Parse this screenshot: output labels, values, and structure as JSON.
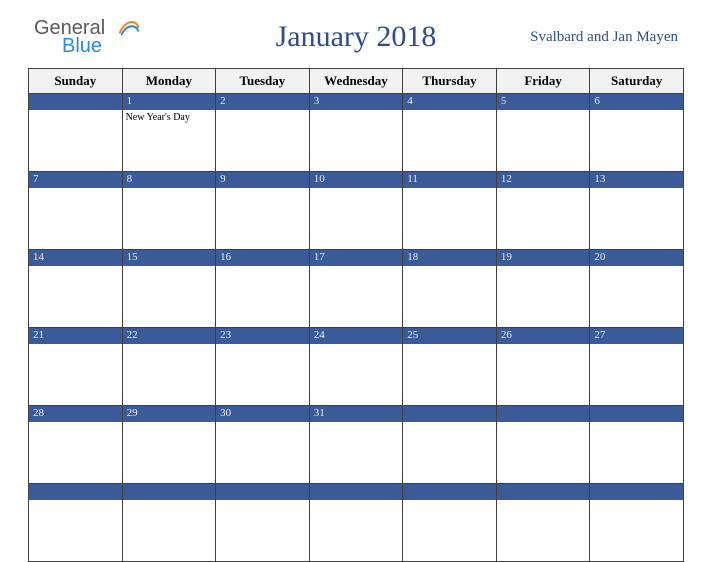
{
  "header": {
    "logo_part1": "General",
    "logo_part2": "Blue",
    "title": "January 2018",
    "region": "Svalbard and Jan Mayen"
  },
  "calendar": {
    "day_headers": [
      "Sunday",
      "Monday",
      "Tuesday",
      "Wednesday",
      "Thursday",
      "Friday",
      "Saturday"
    ],
    "colors": {
      "header_bg": "#f2f2f2",
      "border": "#404040",
      "daybar_bg": "#3a5a98",
      "daybar_text": "#e8ecf5",
      "title_color": "#2f4d8c"
    },
    "weeks": [
      [
        {
          "num": "",
          "event": ""
        },
        {
          "num": "1",
          "event": "New Year's Day"
        },
        {
          "num": "2",
          "event": ""
        },
        {
          "num": "3",
          "event": ""
        },
        {
          "num": "4",
          "event": ""
        },
        {
          "num": "5",
          "event": ""
        },
        {
          "num": "6",
          "event": ""
        }
      ],
      [
        {
          "num": "7",
          "event": ""
        },
        {
          "num": "8",
          "event": ""
        },
        {
          "num": "9",
          "event": ""
        },
        {
          "num": "10",
          "event": ""
        },
        {
          "num": "11",
          "event": ""
        },
        {
          "num": "12",
          "event": ""
        },
        {
          "num": "13",
          "event": ""
        }
      ],
      [
        {
          "num": "14",
          "event": ""
        },
        {
          "num": "15",
          "event": ""
        },
        {
          "num": "16",
          "event": ""
        },
        {
          "num": "17",
          "event": ""
        },
        {
          "num": "18",
          "event": ""
        },
        {
          "num": "19",
          "event": ""
        },
        {
          "num": "20",
          "event": ""
        }
      ],
      [
        {
          "num": "21",
          "event": ""
        },
        {
          "num": "22",
          "event": ""
        },
        {
          "num": "23",
          "event": ""
        },
        {
          "num": "24",
          "event": ""
        },
        {
          "num": "25",
          "event": ""
        },
        {
          "num": "26",
          "event": ""
        },
        {
          "num": "27",
          "event": ""
        }
      ],
      [
        {
          "num": "28",
          "event": ""
        },
        {
          "num": "29",
          "event": ""
        },
        {
          "num": "30",
          "event": ""
        },
        {
          "num": "31",
          "event": ""
        },
        {
          "num": "",
          "event": ""
        },
        {
          "num": "",
          "event": ""
        },
        {
          "num": "",
          "event": ""
        }
      ],
      [
        {
          "num": "",
          "event": ""
        },
        {
          "num": "",
          "event": ""
        },
        {
          "num": "",
          "event": ""
        },
        {
          "num": "",
          "event": ""
        },
        {
          "num": "",
          "event": ""
        },
        {
          "num": "",
          "event": ""
        },
        {
          "num": "",
          "event": ""
        }
      ]
    ]
  }
}
